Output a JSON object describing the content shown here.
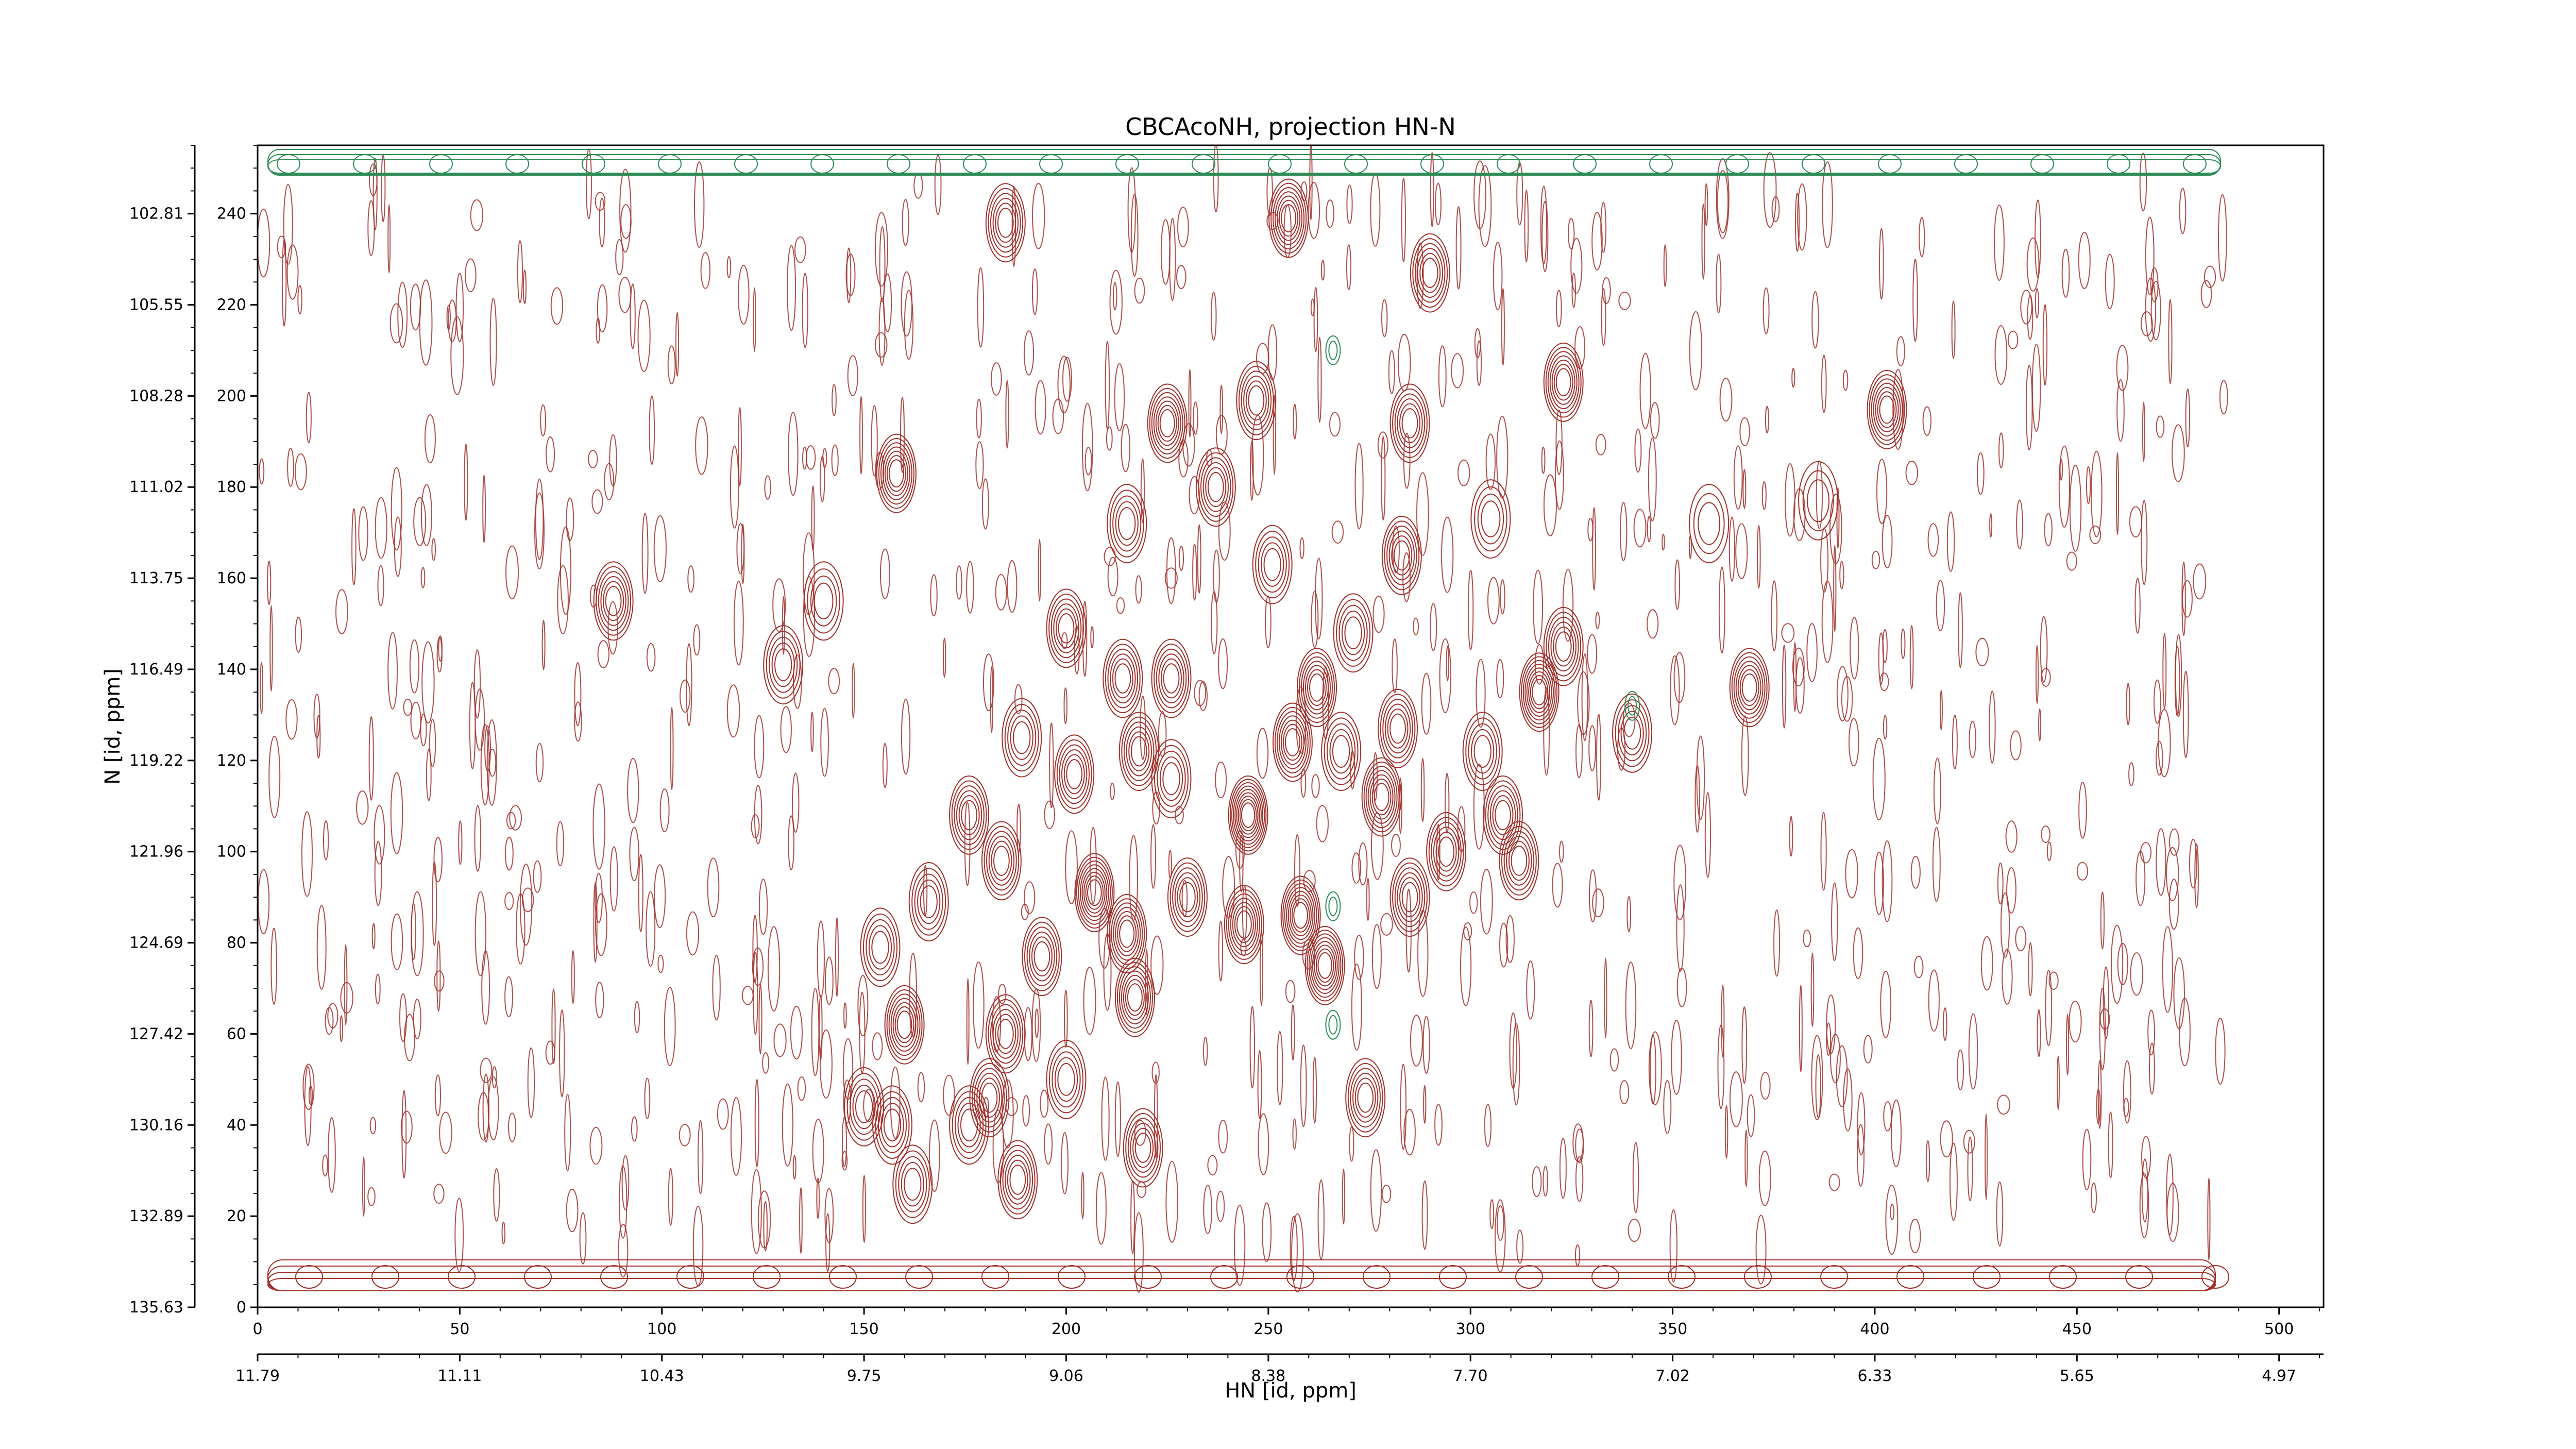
{
  "chart_data": {
    "type": "contour",
    "title": "CBCAcoNH, projection HN-N",
    "xlabel": "HN [id, ppm]",
    "ylabel": "N [id, ppm]",
    "x_points": {
      "range": [
        0,
        511
      ],
      "ticks": [
        0,
        50,
        100,
        150,
        200,
        250,
        300,
        350,
        400,
        450,
        500
      ]
    },
    "y_points": {
      "range": [
        0,
        255
      ],
      "ticks": [
        0,
        20,
        40,
        60,
        80,
        100,
        120,
        140,
        160,
        180,
        200,
        220,
        240
      ]
    },
    "x_ppm": {
      "range": [
        11.79,
        4.77
      ],
      "tick_labels": [
        "11.79",
        "11.11",
        "10.43",
        "9.75",
        "9.06",
        "8.38",
        "7.70",
        "7.02",
        "6.33",
        "5.65",
        "4.97"
      ],
      "tick_positions_pts": [
        0,
        50,
        100,
        150,
        200,
        250,
        300,
        350,
        400,
        450,
        500
      ]
    },
    "y_ppm": {
      "range": [
        135.63,
        100.07
      ],
      "tick_labels": [
        "135.63",
        "132.89",
        "130.16",
        "127.42",
        "124.69",
        "121.96",
        "119.22",
        "116.49",
        "113.75",
        "111.02",
        "108.28",
        "105.55",
        "102.81"
      ],
      "tick_positions_pts": [
        0,
        20,
        40,
        60,
        80,
        100,
        120,
        140,
        160,
        180,
        200,
        220,
        240
      ]
    },
    "series": [
      {
        "name": "",
        "sign": "positive",
        "color": "#a0302a"
      },
      {
        "name": "",
        "sign": "negative",
        "color": "#2e8b57"
      }
    ],
    "peaks": [
      {
        "x": 185,
        "y": 238,
        "h": 6
      },
      {
        "x": 255,
        "y": 239,
        "h": 7
      },
      {
        "x": 290,
        "y": 227,
        "h": 6
      },
      {
        "x": 323,
        "y": 203,
        "h": 7
      },
      {
        "x": 403,
        "y": 197,
        "h": 7
      },
      {
        "x": 225,
        "y": 194,
        "h": 7
      },
      {
        "x": 247,
        "y": 199,
        "h": 6
      },
      {
        "x": 285,
        "y": 194,
        "h": 6
      },
      {
        "x": 158,
        "y": 183,
        "h": 7
      },
      {
        "x": 237,
        "y": 180,
        "h": 6
      },
      {
        "x": 215,
        "y": 172,
        "h": 5
      },
      {
        "x": 305,
        "y": 173,
        "h": 4
      },
      {
        "x": 359,
        "y": 172,
        "h": 3
      },
      {
        "x": 386,
        "y": 177,
        "h": 3
      },
      {
        "x": 251,
        "y": 163,
        "h": 5
      },
      {
        "x": 283,
        "y": 165,
        "h": 6
      },
      {
        "x": 88,
        "y": 155,
        "h": 6
      },
      {
        "x": 140,
        "y": 155,
        "h": 4
      },
      {
        "x": 200,
        "y": 149,
        "h": 6
      },
      {
        "x": 271,
        "y": 148,
        "h": 5
      },
      {
        "x": 323,
        "y": 145,
        "h": 6
      },
      {
        "x": 130,
        "y": 141,
        "h": 5
      },
      {
        "x": 214,
        "y": 138,
        "h": 6
      },
      {
        "x": 226,
        "y": 138,
        "h": 6
      },
      {
        "x": 262,
        "y": 136,
        "h": 7
      },
      {
        "x": 317,
        "y": 135,
        "h": 8
      },
      {
        "x": 369,
        "y": 136,
        "h": 7
      },
      {
        "x": 189,
        "y": 125,
        "h": 5
      },
      {
        "x": 218,
        "y": 122,
        "h": 6
      },
      {
        "x": 282,
        "y": 127,
        "h": 6
      },
      {
        "x": 303,
        "y": 122,
        "h": 5
      },
      {
        "x": 340,
        "y": 126,
        "h": 5
      },
      {
        "x": 202,
        "y": 117,
        "h": 6
      },
      {
        "x": 226,
        "y": 116,
        "h": 5
      },
      {
        "x": 256,
        "y": 124,
        "h": 7
      },
      {
        "x": 268,
        "y": 122,
        "h": 5
      },
      {
        "x": 176,
        "y": 108,
        "h": 6
      },
      {
        "x": 245,
        "y": 108,
        "h": 9
      },
      {
        "x": 278,
        "y": 112,
        "h": 7
      },
      {
        "x": 308,
        "y": 108,
        "h": 6
      },
      {
        "x": 184,
        "y": 98,
        "h": 6
      },
      {
        "x": 294,
        "y": 100,
        "h": 6
      },
      {
        "x": 312,
        "y": 98,
        "h": 6
      },
      {
        "x": 166,
        "y": 89,
        "h": 5
      },
      {
        "x": 207,
        "y": 91,
        "h": 8
      },
      {
        "x": 230,
        "y": 90,
        "h": 6
      },
      {
        "x": 258,
        "y": 86,
        "h": 8
      },
      {
        "x": 285,
        "y": 90,
        "h": 6
      },
      {
        "x": 154,
        "y": 79,
        "h": 5
      },
      {
        "x": 194,
        "y": 77,
        "h": 6
      },
      {
        "x": 215,
        "y": 82,
        "h": 7
      },
      {
        "x": 244,
        "y": 84,
        "h": 7
      },
      {
        "x": 264,
        "y": 75,
        "h": 8
      },
      {
        "x": 160,
        "y": 62,
        "h": 7
      },
      {
        "x": 185,
        "y": 60,
        "h": 6
      },
      {
        "x": 217,
        "y": 68,
        "h": 7
      },
      {
        "x": 181,
        "y": 46,
        "h": 6
      },
      {
        "x": 200,
        "y": 50,
        "h": 5
      },
      {
        "x": 150,
        "y": 44,
        "h": 5
      },
      {
        "x": 157,
        "y": 40,
        "h": 5
      },
      {
        "x": 274,
        "y": 46,
        "h": 6
      },
      {
        "x": 176,
        "y": 40,
        "h": 5
      },
      {
        "x": 188,
        "y": 28,
        "h": 6
      },
      {
        "x": 219,
        "y": 35,
        "h": 6
      },
      {
        "x": 162,
        "y": 27,
        "h": 5
      }
    ],
    "negative_peaks": [
      {
        "x": 266,
        "y": 210
      },
      {
        "x": 266,
        "y": 88
      },
      {
        "x": 266,
        "y": 62
      },
      {
        "x": 340,
        "y": 132
      }
    ],
    "grid": false,
    "legend": "none"
  }
}
